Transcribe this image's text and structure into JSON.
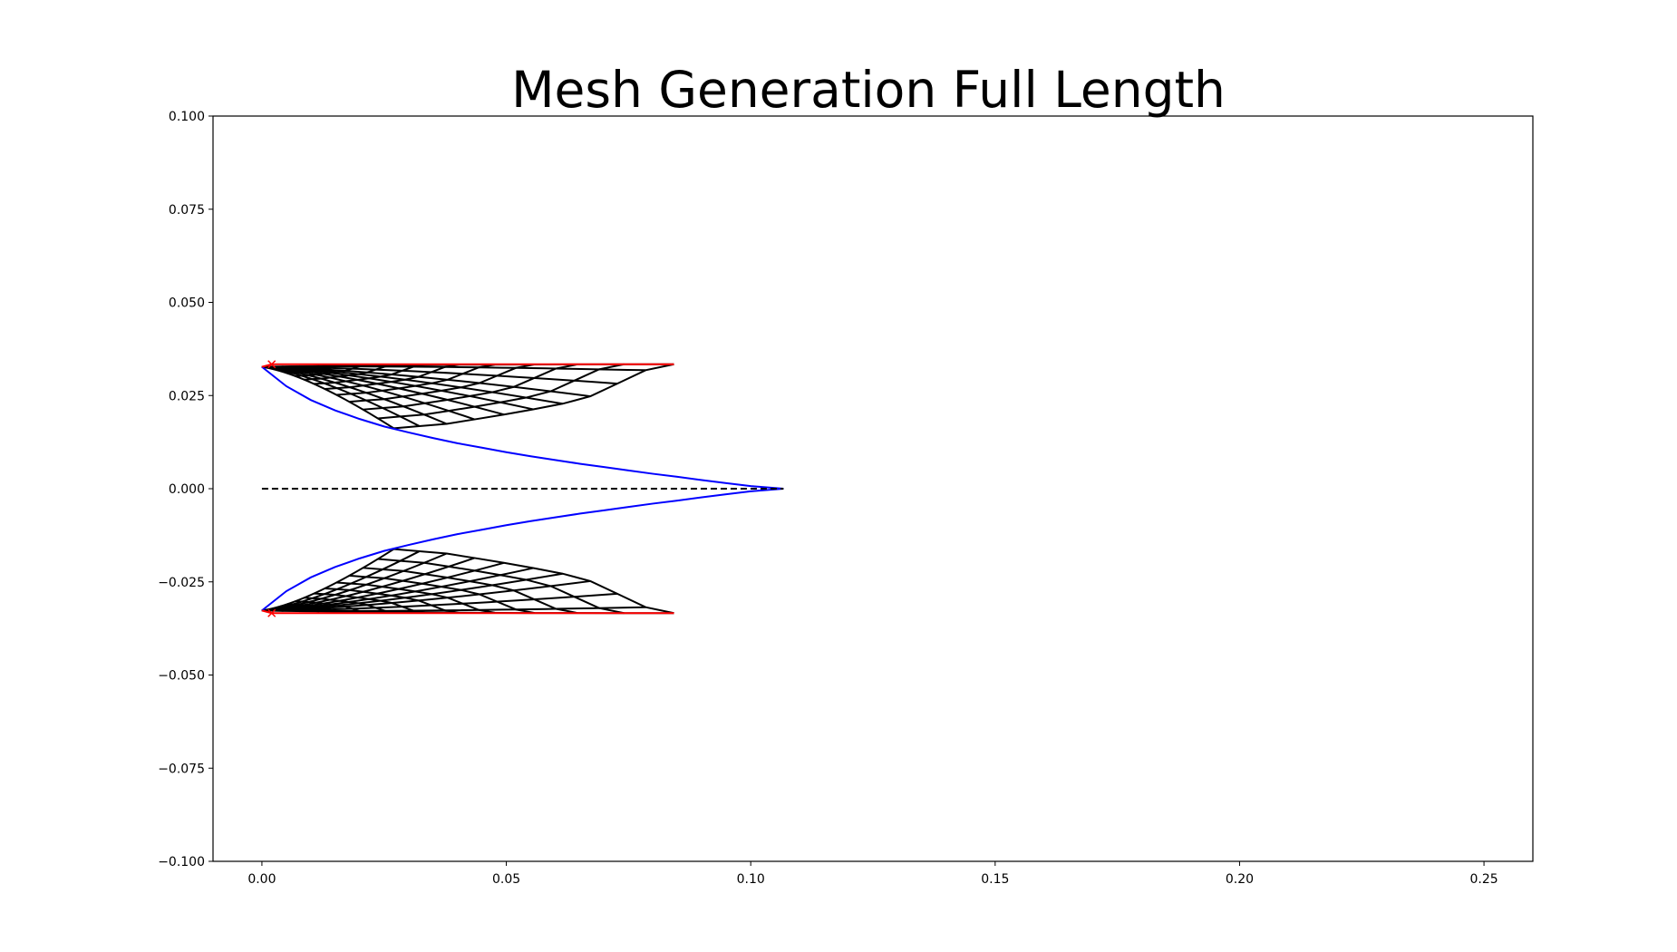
{
  "chart_data": {
    "type": "line",
    "title": "Mesh Generation Full Length",
    "xlabel": "",
    "ylabel": "",
    "xlim": [
      -0.01,
      0.26
    ],
    "ylim": [
      -0.1,
      0.1
    ],
    "grid": false,
    "legend": "none",
    "x_ticks": [
      {
        "value": 0.0,
        "label": "0.00"
      },
      {
        "value": 0.05,
        "label": "0.05"
      },
      {
        "value": 0.1,
        "label": "0.10"
      },
      {
        "value": 0.15,
        "label": "0.15"
      },
      {
        "value": 0.2,
        "label": "0.20"
      },
      {
        "value": 0.25,
        "label": "0.25"
      }
    ],
    "y_ticks": [
      {
        "value": 0.1,
        "label": "0.100"
      },
      {
        "value": 0.075,
        "label": "0.075"
      },
      {
        "value": 0.05,
        "label": "0.050"
      },
      {
        "value": 0.025,
        "label": "0.025"
      },
      {
        "value": 0.0,
        "label": "0.000"
      },
      {
        "value": -0.025,
        "label": "−0.025"
      },
      {
        "value": -0.05,
        "label": "−0.050"
      },
      {
        "value": -0.075,
        "label": "−0.075"
      },
      {
        "value": -0.1,
        "label": "−0.100"
      }
    ],
    "colors": {
      "profile": "#0000ff",
      "boundary": "#ff0000",
      "mesh": "#000000",
      "centerline": "#000000"
    },
    "series": [
      {
        "style": "profile",
        "x": [
          0.0,
          0.005,
          0.01,
          0.015,
          0.02,
          0.025,
          0.03,
          0.035,
          0.04,
          0.045,
          0.05,
          0.055,
          0.06,
          0.065,
          0.07,
          0.075,
          0.08,
          0.085,
          0.09,
          0.095,
          0.1,
          0.1067
        ],
        "y": [
          0.0327,
          0.0275,
          0.0238,
          0.021,
          0.0187,
          0.0167,
          0.0151,
          0.0136,
          0.0122,
          0.011,
          0.0098,
          0.0087,
          0.0077,
          0.0067,
          0.0058,
          0.0049,
          0.004,
          0.0032,
          0.0023,
          0.0015,
          0.0007,
          0.0
        ]
      },
      {
        "style": "profile",
        "x": [
          0.0,
          0.005,
          0.01,
          0.015,
          0.02,
          0.025,
          0.03,
          0.035,
          0.04,
          0.045,
          0.05,
          0.055,
          0.06,
          0.065,
          0.07,
          0.075,
          0.08,
          0.085,
          0.09,
          0.095,
          0.1,
          0.1067
        ],
        "y": [
          -0.0327,
          -0.0275,
          -0.0238,
          -0.021,
          -0.0187,
          -0.0167,
          -0.0151,
          -0.0136,
          -0.0122,
          -0.011,
          -0.0098,
          -0.0087,
          -0.0077,
          -0.0067,
          -0.0058,
          -0.0049,
          -0.004,
          -0.0032,
          -0.0023,
          -0.0015,
          -0.0007,
          0.0
        ]
      },
      {
        "style": "centerline",
        "dashed": true,
        "x": [
          0.0,
          0.1067
        ],
        "y": [
          0.0,
          0.0
        ]
      },
      {
        "style": "boundary",
        "x": [
          0.0,
          0.002,
          0.0843
        ],
        "y": [
          0.0327,
          0.0334,
          0.0334
        ]
      },
      {
        "style": "boundary",
        "x": [
          0.0,
          0.002,
          0.0843
        ],
        "y": [
          -0.0327,
          -0.0334,
          -0.0334
        ]
      }
    ],
    "mesh": {
      "style": "mesh",
      "start_point": {
        "x": 0.0,
        "y": 0.0327
      },
      "boundary_y": 0.0334,
      "line_ends": [
        {
          "x": 0.0843,
          "y": 0.0334
        },
        {
          "x": 0.0785,
          "y": 0.0318
        },
        {
          "x": 0.0727,
          "y": 0.0282
        },
        {
          "x": 0.0672,
          "y": 0.0248
        },
        {
          "x": 0.0615,
          "y": 0.0228
        },
        {
          "x": 0.0555,
          "y": 0.0213
        },
        {
          "x": 0.0495,
          "y": 0.0199
        },
        {
          "x": 0.0435,
          "y": 0.0186
        },
        {
          "x": 0.0378,
          "y": 0.0174
        },
        {
          "x": 0.0322,
          "y": 0.0168
        },
        {
          "x": 0.027,
          "y": 0.0162
        }
      ],
      "rungs": 14
    },
    "markers": [
      {
        "x": 0.002,
        "y": 0.0334,
        "symbol": "x"
      },
      {
        "x": 0.002,
        "y": -0.0334,
        "symbol": "x"
      }
    ]
  }
}
